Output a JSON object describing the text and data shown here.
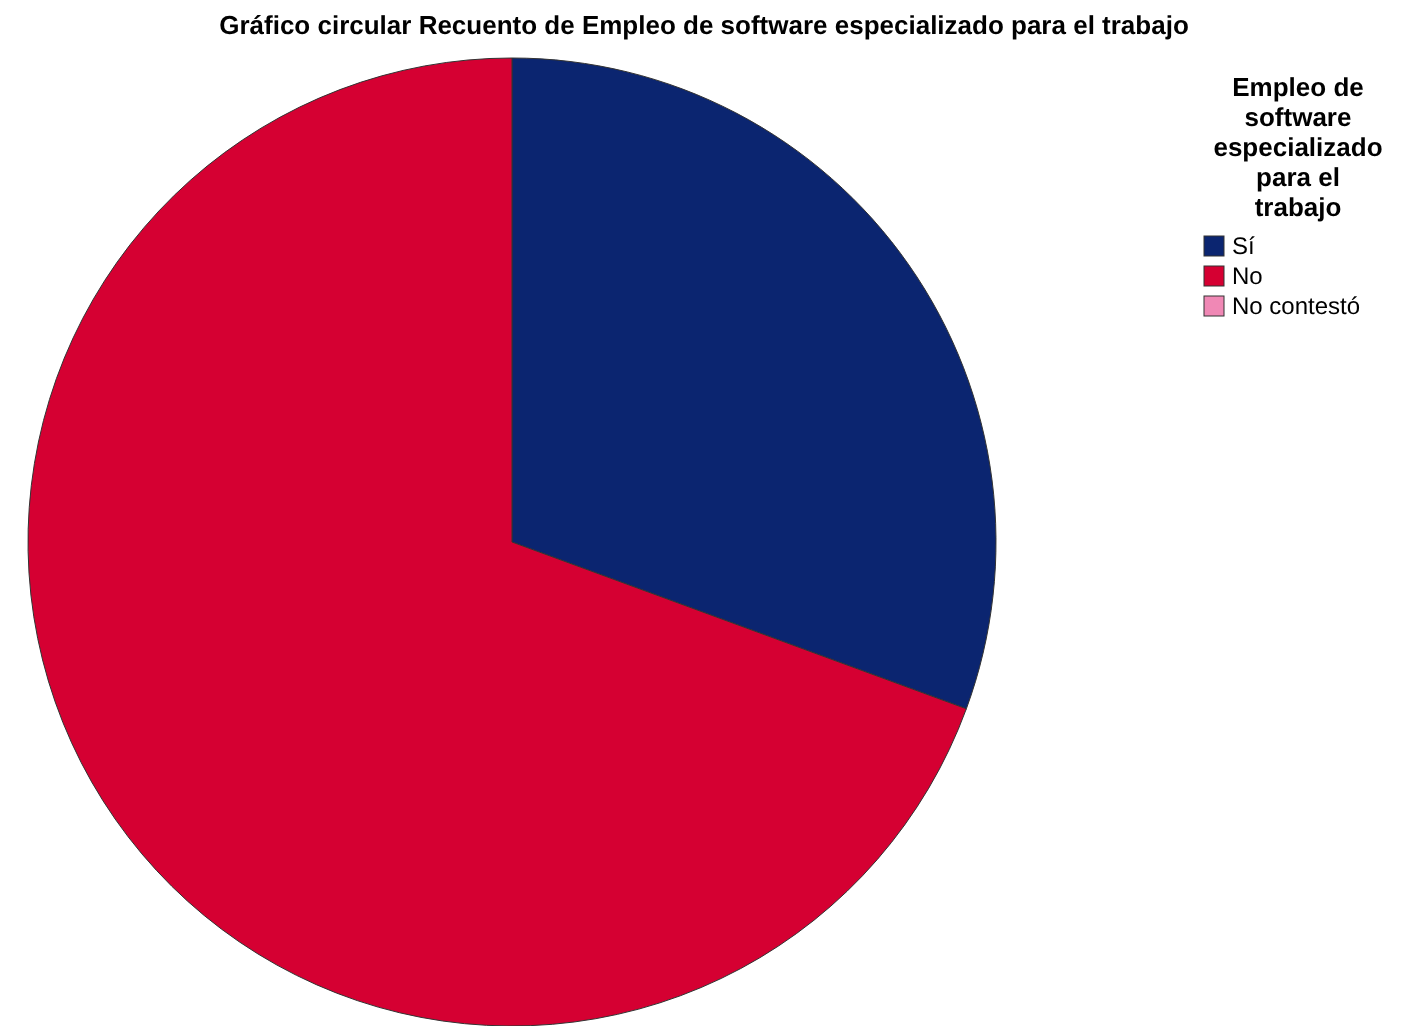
{
  "chart_data": {
    "type": "pie",
    "title": "Gráfico circular Recuento de Empleo de software especializado para el trabajo",
    "legend_title": "Empleo de software especializado para el trabajo",
    "categories": [
      "Sí",
      "No",
      "No contestó"
    ],
    "values": [
      30.6,
      69.4,
      0
    ],
    "colors": [
      "#0b2570",
      "#d50032",
      "#f088b5"
    ],
    "legend": "top right"
  }
}
